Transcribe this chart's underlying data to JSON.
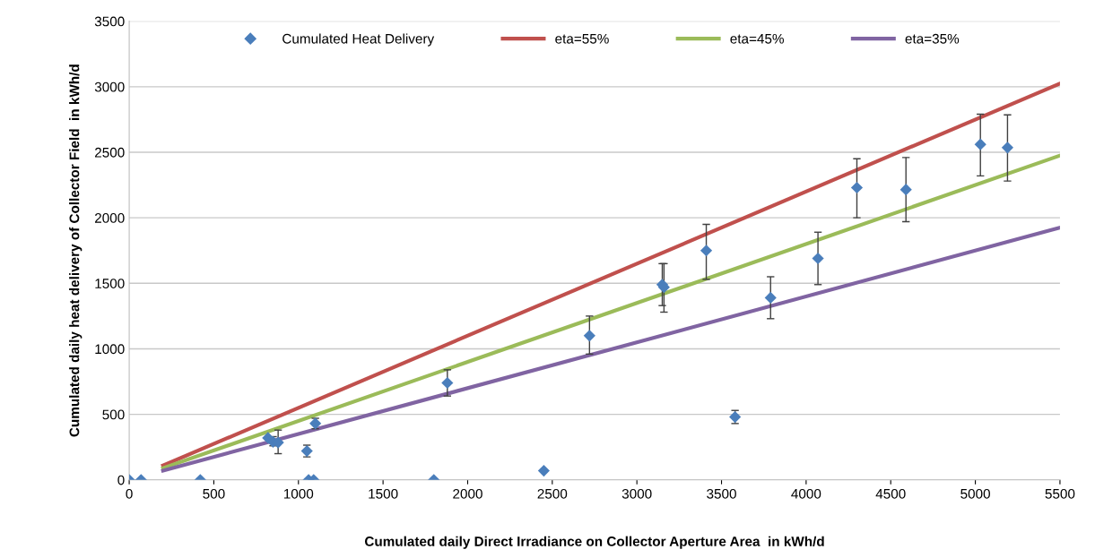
{
  "chart_data": {
    "type": "scatter",
    "xlabel": "Cumulated daily Direct Irradiance on Collector Aperture Area  in kWh/d",
    "ylabel": "Cumulated daily heat delivery of Collector Field  in kWh/d",
    "xlim": [
      0,
      5500
    ],
    "xticks": [
      0,
      500,
      1000,
      1500,
      2000,
      2500,
      3000,
      3500,
      4000,
      4500,
      5000,
      5500
    ],
    "ylim": [
      0,
      3500
    ],
    "yticks": [
      0,
      500,
      1000,
      1500,
      2000,
      2500,
      3000,
      3500
    ],
    "grid": "y",
    "legend": "top",
    "series": [
      {
        "name": "Cumulated Heat Delivery",
        "marker": "diamond",
        "color": "#4a7ebb",
        "x": [
          0,
          70,
          420,
          820,
          850,
          880,
          1050,
          1060,
          1090,
          1100,
          1800,
          1880,
          2450,
          2720,
          3150,
          3160,
          3410,
          3580,
          3790,
          4070,
          4300,
          4590,
          5030,
          5190
        ],
        "values": [
          0,
          0,
          0,
          320,
          290,
          285,
          220,
          0,
          0,
          430,
          0,
          740,
          70,
          1100,
          1490,
          1470,
          1750,
          480,
          1390,
          1690,
          2230,
          2215,
          2560,
          2535
        ],
        "errors": [
          null,
          null,
          null,
          null,
          [
            260,
            330
          ],
          [
            200,
            380
          ],
          [
            175,
            265
          ],
          null,
          null,
          [
            390,
            470
          ],
          null,
          [
            640,
            840
          ],
          null,
          [
            960,
            1250
          ],
          [
            1330,
            1650
          ],
          [
            1280,
            1650
          ],
          [
            1530,
            1950
          ],
          [
            430,
            530
          ],
          [
            1230,
            1550
          ],
          [
            1490,
            1890
          ],
          [
            2000,
            2450
          ],
          [
            1970,
            2460
          ],
          [
            2320,
            2790
          ],
          [
            2280,
            2785
          ]
        ]
      },
      {
        "name": "eta=55%",
        "type": "line",
        "color": "#c0504d",
        "x": [
          200,
          5500
        ],
        "values": [
          110,
          3025
        ]
      },
      {
        "name": "eta=45%",
        "type": "line",
        "color": "#9bbb59",
        "x": [
          200,
          5500
        ],
        "values": [
          90,
          2475
        ]
      },
      {
        "name": "eta=35%",
        "type": "line",
        "color": "#8064a2",
        "x": [
          200,
          5500
        ],
        "values": [
          70,
          1925
        ]
      }
    ]
  }
}
